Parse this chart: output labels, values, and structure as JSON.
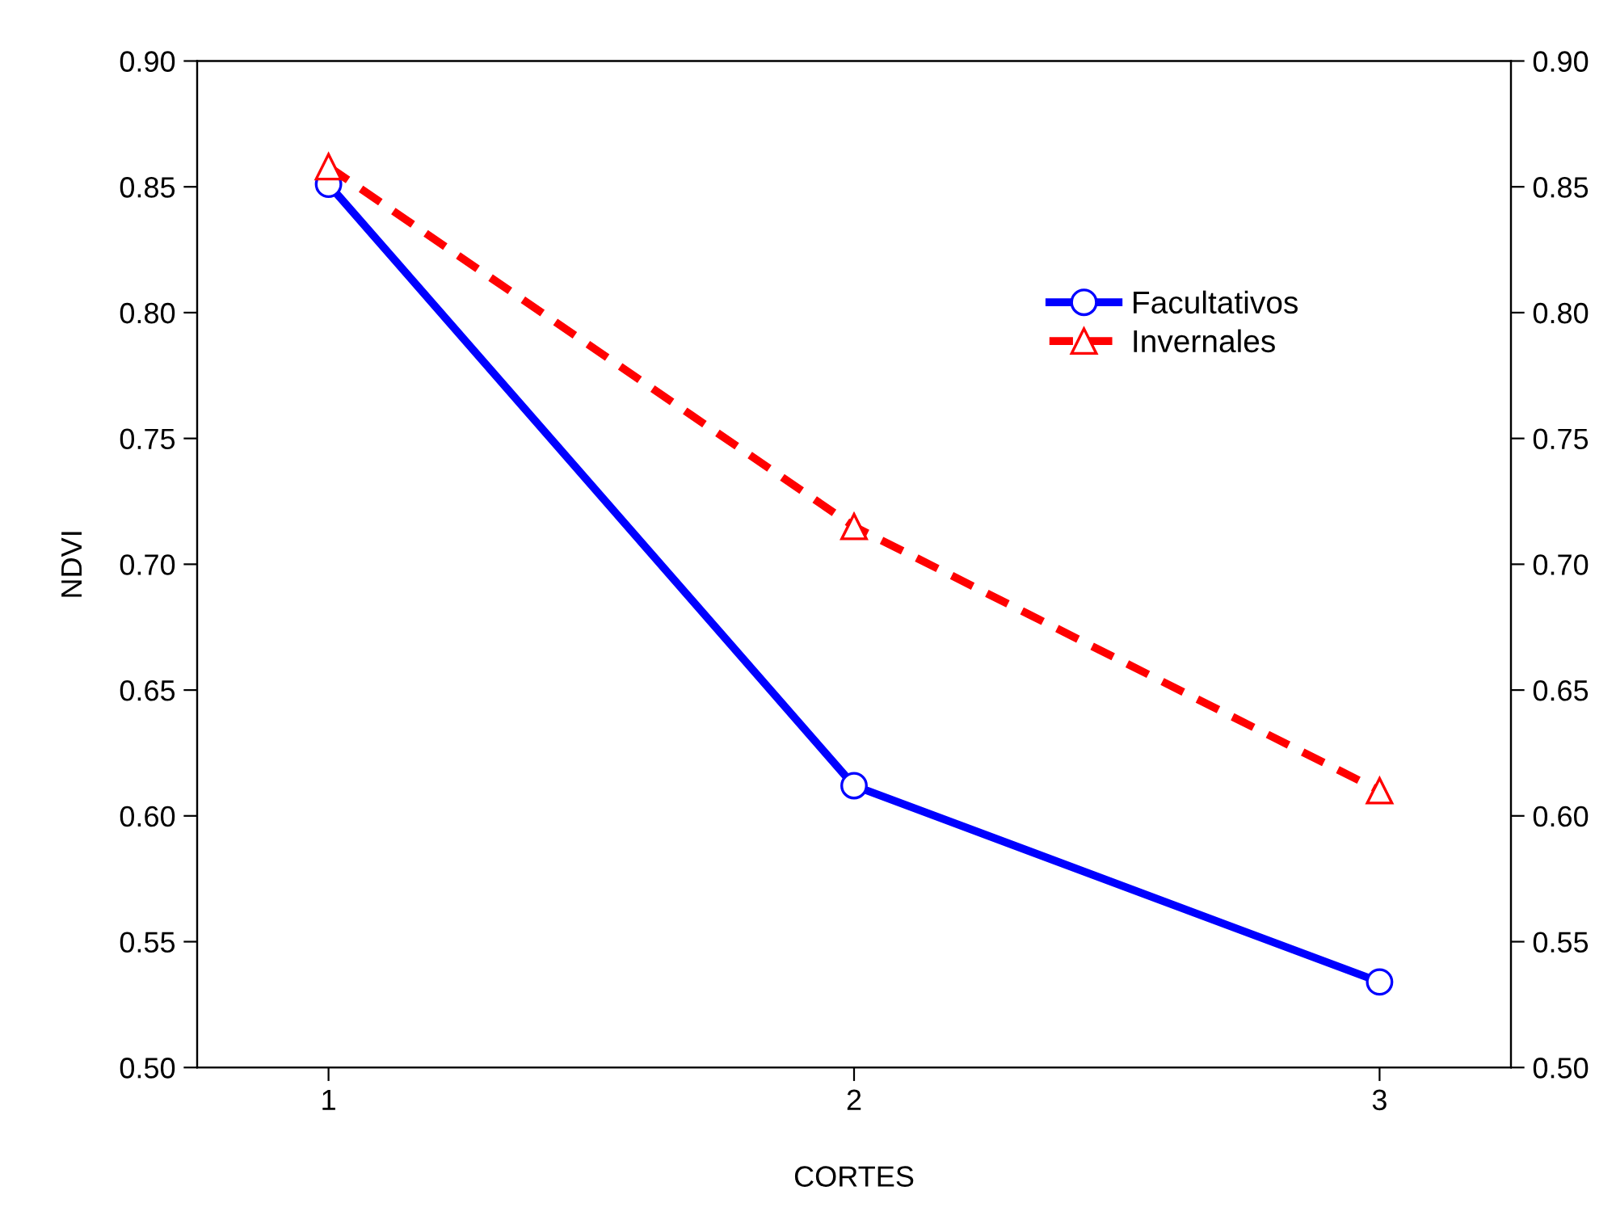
{
  "chart_data": {
    "type": "line",
    "xlabel": "CORTES",
    "ylabel": "NDVI",
    "categories": [
      "1",
      "2",
      "3"
    ],
    "series": [
      {
        "name": "Facultativos",
        "color": "#0000ff",
        "values": [
          0.851,
          0.612,
          0.534
        ],
        "marker": "circle",
        "line_style": "solid"
      },
      {
        "name": "Invernales",
        "color": "#ff0000",
        "values": [
          0.858,
          0.715,
          0.61
        ],
        "marker": "triangle",
        "line_style": "dashed"
      }
    ],
    "ylim": [
      0.5,
      0.9
    ],
    "yticks": [
      {
        "value": 0.5,
        "label": "0.50"
      },
      {
        "value": 0.55,
        "label": "0.55"
      },
      {
        "value": 0.6,
        "label": "0.60"
      },
      {
        "value": 0.65,
        "label": "0.65"
      },
      {
        "value": 0.7,
        "label": "0.70"
      },
      {
        "value": 0.75,
        "label": "0.75"
      },
      {
        "value": 0.8,
        "label": "0.80"
      },
      {
        "value": 0.85,
        "label": "0.85"
      },
      {
        "value": 0.9,
        "label": "0.90"
      }
    ],
    "y2lim": [
      0.5,
      0.9
    ],
    "y2ticks": [
      {
        "value": 0.5,
        "label": "0.50"
      },
      {
        "value": 0.55,
        "label": "0.55"
      },
      {
        "value": 0.6,
        "label": "0.60"
      },
      {
        "value": 0.65,
        "label": "0.65"
      },
      {
        "value": 0.7,
        "label": "0.70"
      },
      {
        "value": 0.75,
        "label": "0.75"
      },
      {
        "value": 0.8,
        "label": "0.80"
      },
      {
        "value": 0.85,
        "label": "0.85"
      },
      {
        "value": 0.9,
        "label": "0.90"
      }
    ],
    "grid": false,
    "legend": "top right"
  }
}
